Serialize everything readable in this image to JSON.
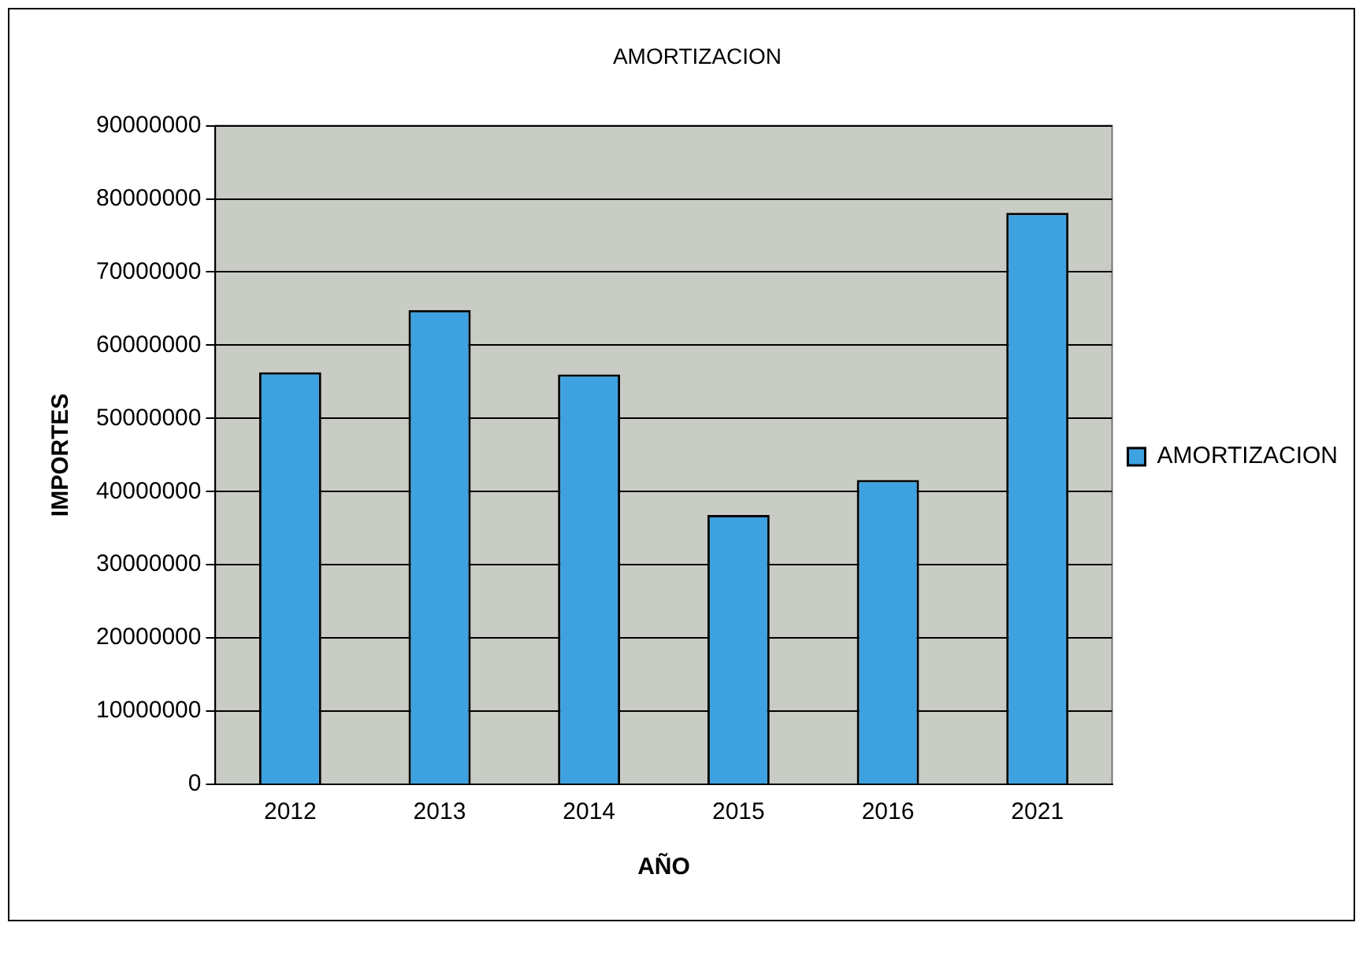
{
  "chart_data": {
    "type": "bar",
    "title": "AMORTIZACION",
    "xlabel": "AÑO",
    "ylabel": "IMPORTES",
    "categories": [
      "2012",
      "2013",
      "2014",
      "2015",
      "2016",
      "2021"
    ],
    "series": [
      {
        "name": "AMORTIZACION",
        "color": "#3ea2e0",
        "values": [
          56300000,
          64800000,
          56000000,
          36800000,
          41600000,
          78100000
        ]
      }
    ],
    "ylim": [
      0,
      90000000
    ],
    "yticks": [
      0,
      10000000,
      20000000,
      30000000,
      40000000,
      50000000,
      60000000,
      70000000,
      80000000,
      90000000
    ],
    "grid": "y",
    "legend": "right"
  }
}
